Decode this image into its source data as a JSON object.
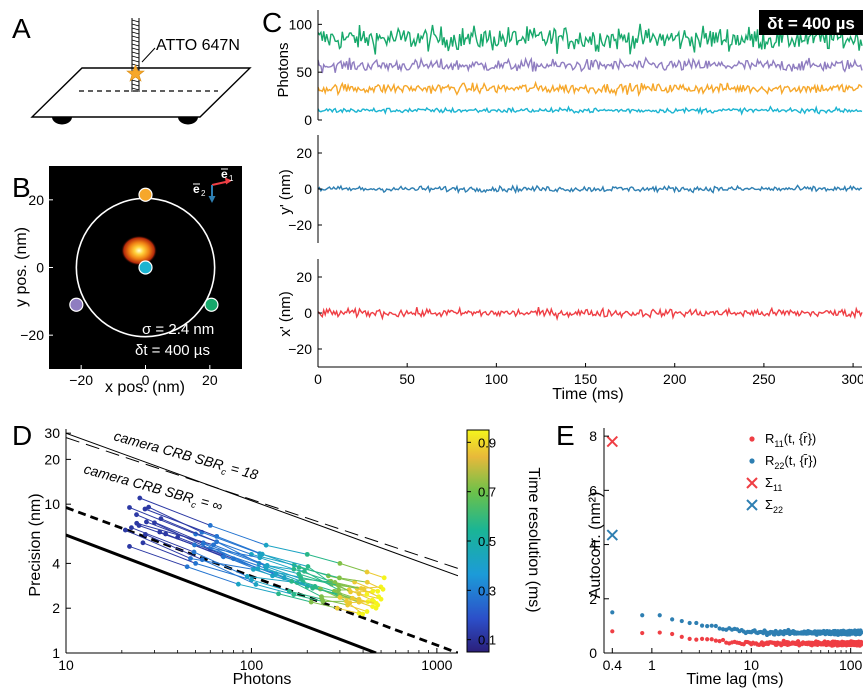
{
  "panels": {
    "A": {
      "letter": "A",
      "label": "ATTO 647N"
    },
    "B": {
      "letter": "B",
      "xlabel": "x pos. (nm)",
      "ylabel": "y pos. (nm)",
      "xticks": [
        -20,
        0,
        20
      ],
      "yticks": [
        -20,
        0,
        20
      ],
      "vector_e1": "e",
      "vector_e1_sub": "1",
      "vector_e2": "e",
      "vector_e2_sub": "2",
      "sigma_label": "σ  = 2.4 nm",
      "dt_label": "δt = 400 µs",
      "donut_colors": [
        "#f6a72a",
        "#8f7dc0",
        "#17a86b",
        "#1bb4d1"
      ],
      "spot_colors": [
        "#ffffd8",
        "#ffd23c",
        "#f08214",
        "#b4280a"
      ]
    },
    "C": {
      "letter": "C",
      "dt_badge": "δt = 400 µs",
      "photons_ylabel": "Photons",
      "photons_yticks": [
        0,
        50,
        100
      ],
      "yprime_ylabel": "y' (nm)",
      "xprime_ylabel": "x' (nm)",
      "pos_yticks": [
        -20,
        0,
        20
      ],
      "time_xlabel": "Time (ms)",
      "time_xticks": [
        0,
        50,
        100,
        150,
        200,
        250,
        300
      ],
      "series_colors": [
        "#17a86b",
        "#8f7dc0",
        "#f6a72a",
        "#1bb4d1",
        "#2e7fb2",
        "#ef3e44"
      ],
      "series_means": [
        85,
        57,
        33,
        10,
        0,
        0
      ],
      "series_spread": [
        12,
        6,
        5,
        2.5,
        1.5,
        2.2
      ]
    },
    "D": {
      "letter": "D",
      "xlabel": "Photons",
      "ylabel": "Precision  (nm)",
      "xticks": [
        "10",
        "100",
        "1000"
      ],
      "yticks": [
        "1",
        "2",
        "4",
        "10",
        "20",
        "30"
      ],
      "label_sbr18": "camera CRB SBR",
      "label_sbr18_sub": "c",
      "label_sbr18_tail": " = 18",
      "label_sbrinf": "camera CRB SBR",
      "label_sbrinf_sub": "c",
      "label_sbrinf_tail": " = ∞",
      "colorbar_label": "Time resolution (ms)",
      "colorbar_ticks": [
        "0.1",
        "0.3",
        "0.5",
        "0.7",
        "0.9"
      ]
    },
    "E": {
      "letter": "E",
      "xlabel": "Time lag (ms)",
      "ylabel": "Autocorr. (nm²)",
      "xticks": [
        "0.4",
        "1",
        "10",
        "100"
      ],
      "yticks": [
        "0",
        "2",
        "4",
        "6",
        "8"
      ],
      "legend": [
        {
          "marker": "dot",
          "color": "#ef3e44",
          "label": "R",
          "sub": "11",
          "tail": "(t, {r̄})"
        },
        {
          "marker": "dot",
          "color": "#2e7fb2",
          "label": "R",
          "sub": "22",
          "tail": "(t, {r̄})"
        },
        {
          "marker": "x",
          "color": "#ef3e44",
          "label": "Σ",
          "sub": "11",
          "tail": ""
        },
        {
          "marker": "x",
          "color": "#2e7fb2",
          "label": "Σ",
          "sub": "22",
          "tail": ""
        }
      ]
    }
  },
  "chart_data": [
    {
      "panel": "B",
      "type": "heatmap",
      "xlabel": "x pos. (nm)",
      "ylabel": "y pos. (nm)",
      "xlim": [
        -30,
        30
      ],
      "ylim": [
        -30,
        30
      ],
      "spot_center": [
        -2,
        5
      ],
      "circle_radius": 21.5,
      "donut_positions": [
        [
          0,
          21.5
        ],
        [
          -21.5,
          -11
        ],
        [
          20.5,
          -11
        ],
        [
          0,
          0
        ]
      ]
    },
    {
      "panel": "C-photons",
      "type": "line",
      "xlabel": "Time (ms)",
      "ylabel": "Photons",
      "xlim": [
        0,
        305
      ],
      "ylim": [
        0,
        115
      ],
      "series": [
        {
          "color": "#17a86b",
          "mean": 85
        },
        {
          "color": "#8f7dc0",
          "mean": 57
        },
        {
          "color": "#f6a72a",
          "mean": 33
        },
        {
          "color": "#1bb4d1",
          "mean": 10
        }
      ]
    },
    {
      "panel": "C-y",
      "type": "line",
      "xlabel": "",
      "ylabel": "y' (nm)",
      "xlim": [
        0,
        305
      ],
      "ylim": [
        -30,
        30
      ],
      "series": [
        {
          "color": "#2e7fb2",
          "mean": 0
        }
      ]
    },
    {
      "panel": "C-x",
      "type": "line",
      "xlabel": "Time (ms)",
      "ylabel": "x' (nm)",
      "xlim": [
        0,
        305
      ],
      "ylim": [
        -30,
        30
      ],
      "series": [
        {
          "color": "#ef3e44",
          "mean": 0
        }
      ]
    },
    {
      "panel": "D",
      "type": "scatter",
      "xlabel": "Photons",
      "ylabel": "Precision  (nm)",
      "xscale": "log",
      "yscale": "log",
      "xlim": [
        10,
        1300
      ],
      "ylim": [
        1,
        32
      ],
      "lines": [
        {
          "name": "camera CRB SBR_c = 18 (upper)",
          "style": "solid",
          "p1": [
            10,
            30
          ],
          "p2": [
            1300,
            3.3
          ]
        },
        {
          "name": "camera CRB SBR_c = 18 (lower)",
          "style": "dashed",
          "p1": [
            10,
            28
          ],
          "p2": [
            1300,
            3.7
          ]
        },
        {
          "name": "camera CRB SBR_c = ∞",
          "style": "solid-thick",
          "p1": [
            10,
            6.2
          ],
          "p2": [
            470,
            1
          ]
        },
        {
          "name": "MINFLUX bound",
          "style": "dashed-thick",
          "p1": [
            10,
            9.5
          ],
          "p2": [
            1300,
            1
          ]
        }
      ],
      "tracks": [
        {
          "photons": [
            25,
            60,
            120,
            200,
            300,
            420,
            520
          ],
          "precision": [
            11,
            7.2,
            5.3,
            4.6,
            4,
            3.5,
            3.2
          ]
        },
        {
          "photons": [
            22,
            50,
            100,
            170,
            260,
            360,
            480
          ],
          "precision": [
            9.5,
            6.3,
            4.6,
            3.9,
            3.3,
            3,
            2.6
          ]
        },
        {
          "photons": [
            24,
            55,
            110,
            180,
            270,
            380,
            500
          ],
          "precision": [
            8.5,
            5.5,
            4,
            3.4,
            2.9,
            2.5,
            2.3
          ]
        },
        {
          "photons": [
            30,
            60,
            120,
            190,
            280,
            380,
            480
          ],
          "precision": [
            7.5,
            5,
            3.7,
            3,
            2.6,
            2.3,
            2.1
          ]
        },
        {
          "photons": [
            32,
            70,
            130,
            200,
            290,
            380,
            470
          ],
          "precision": [
            6.5,
            4.5,
            3.3,
            2.8,
            2.5,
            2.2,
            2
          ]
        },
        {
          "photons": [
            26,
            50,
            100,
            160,
            240,
            330,
            420
          ],
          "precision": [
            5.5,
            4,
            3.1,
            2.6,
            2.3,
            2.1,
            1.9
          ]
        },
        {
          "photons": [
            40,
            80,
            150,
            220,
            300,
            380,
            450
          ],
          "precision": [
            6,
            4.3,
            3.2,
            2.8,
            2.4,
            2.2,
            2.05
          ]
        },
        {
          "photons": [
            22,
            45,
            85,
            140,
            210,
            290,
            380
          ],
          "precision": [
            5.2,
            3.8,
            2.9,
            2.5,
            2.2,
            2,
            1.85
          ]
        }
      ],
      "colorbar": {
        "label": "Time resolution (ms)",
        "range": [
          0.05,
          0.95
        ]
      }
    },
    {
      "panel": "E",
      "type": "scatter",
      "xlabel": "Time lag (ms)",
      "ylabel": "Autocorr. (nm²)",
      "xscale": "log",
      "xlim": [
        0.33,
        130
      ],
      "ylim": [
        0,
        8.3
      ],
      "sigma_11": {
        "x": 0.4,
        "y": 7.8
      },
      "sigma_22": {
        "x": 0.4,
        "y": 4.35
      },
      "R11": {
        "start": 0.8,
        "level": 0.35
      },
      "R22": {
        "start": 1.5,
        "level": 0.75
      }
    }
  ]
}
